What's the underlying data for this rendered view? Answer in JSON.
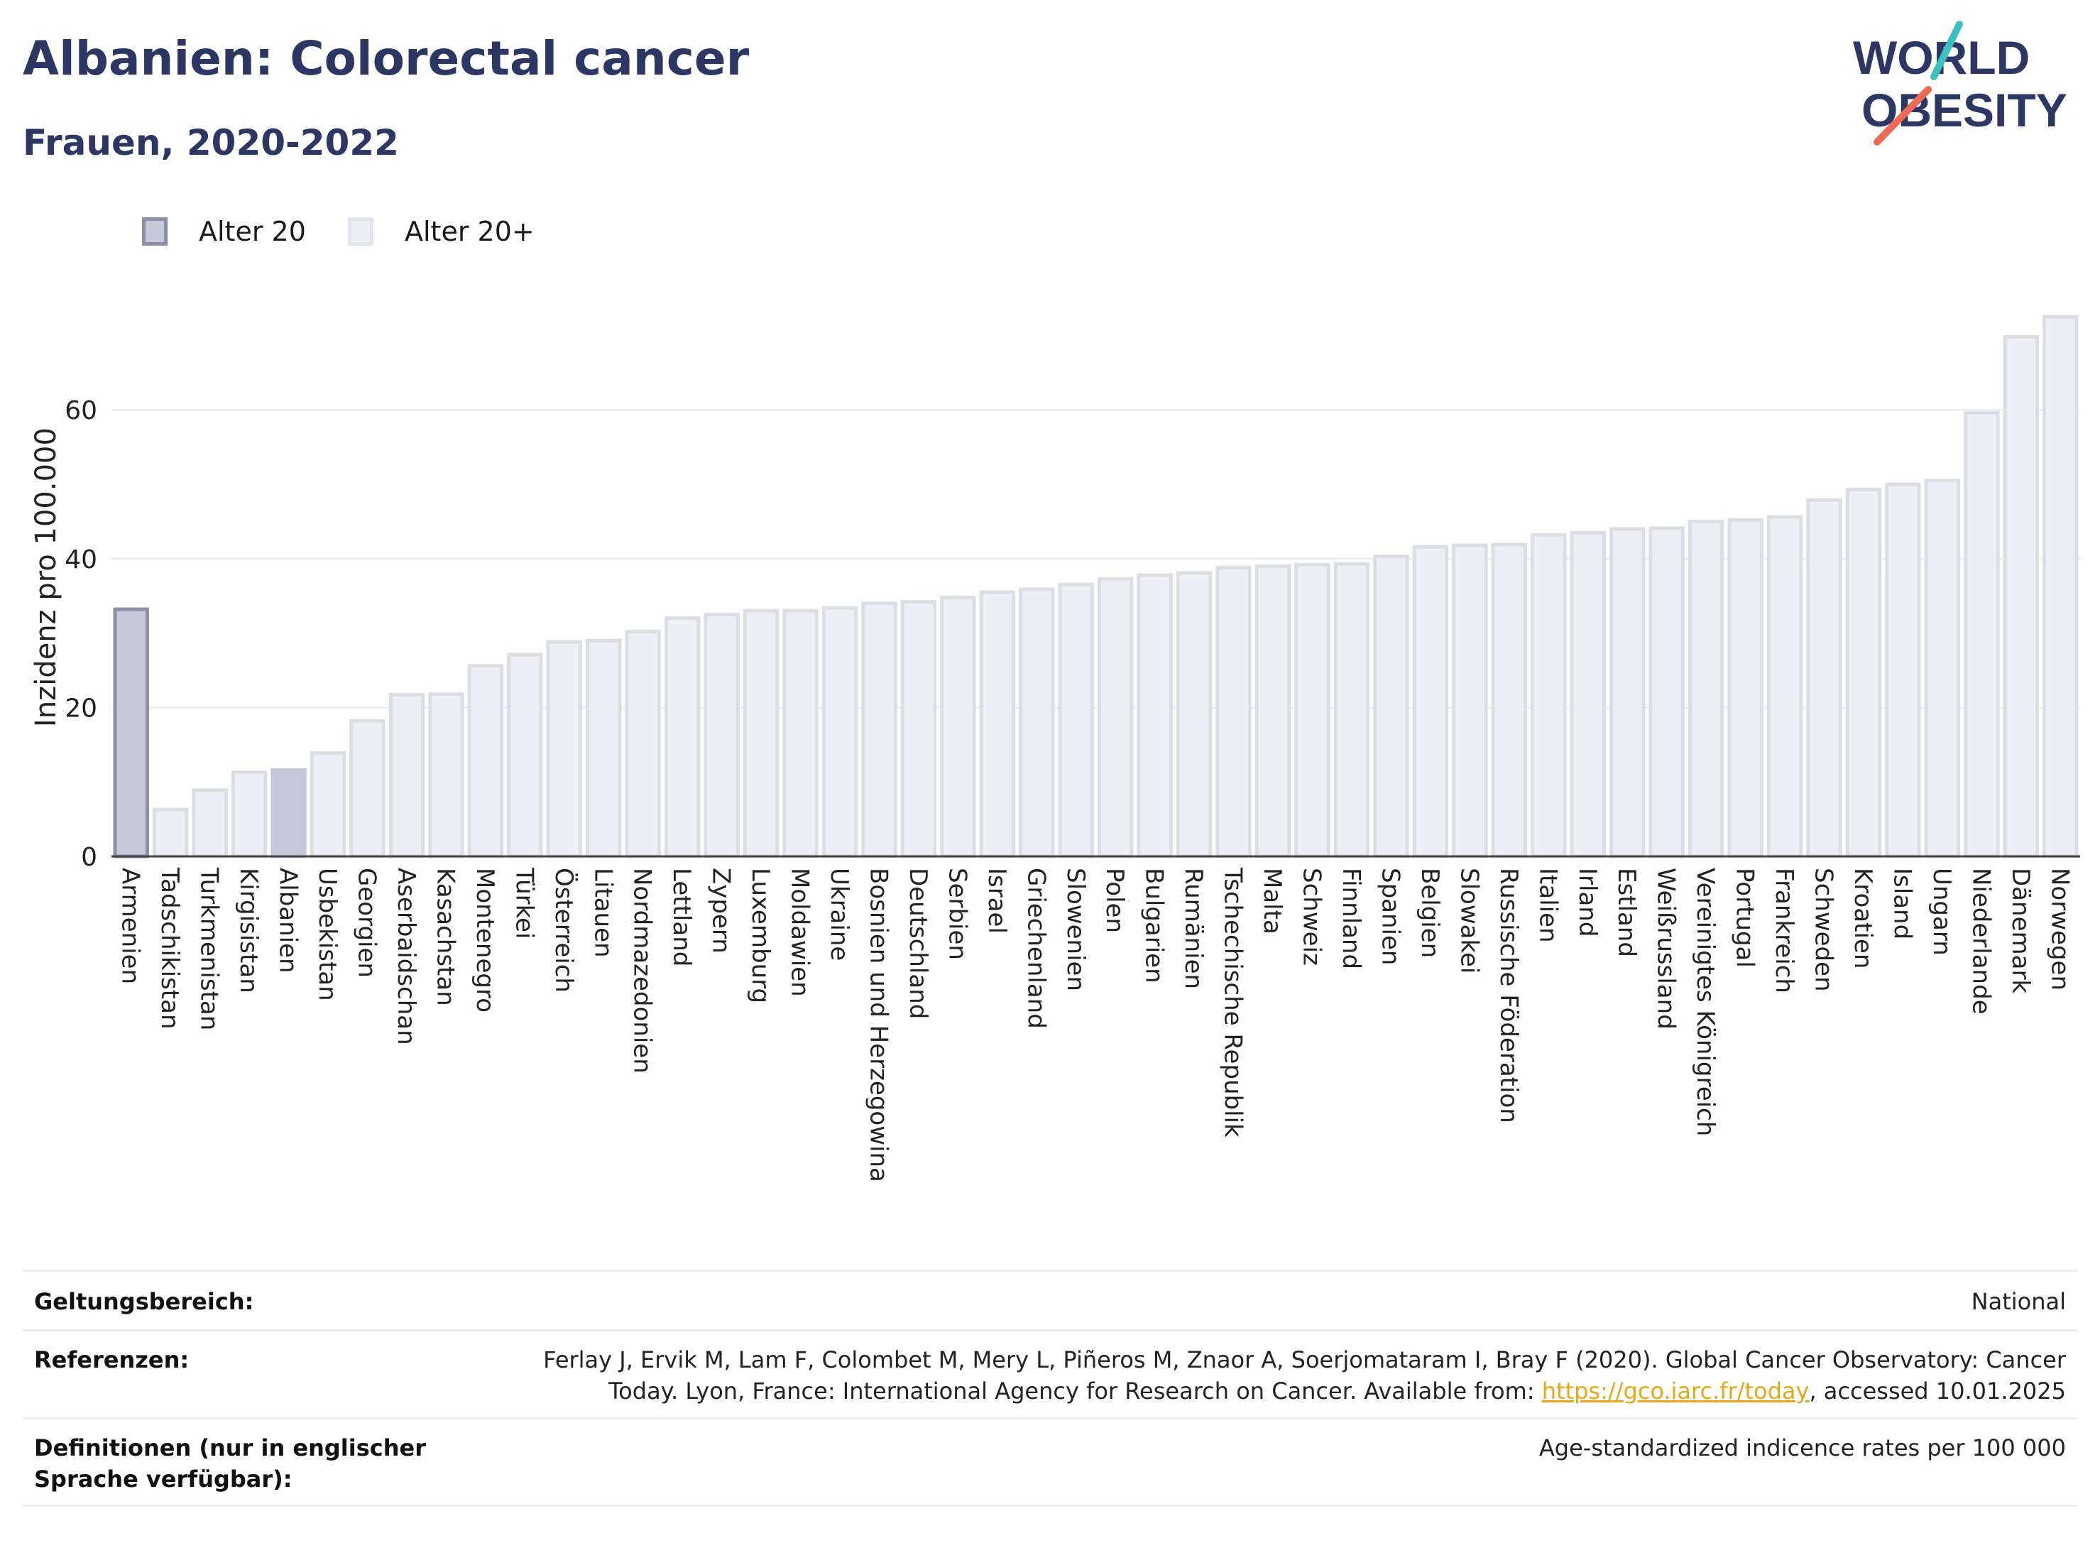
{
  "title": "Albanien: Colorectal cancer",
  "subtitle": "Frauen, 2020-2022",
  "logo": {
    "line1": "WORLD",
    "line2": "OBESITY"
  },
  "colors": {
    "title": "#2d3763",
    "highlight_fill": "#c5c8d6",
    "highlight_stroke": "#8a90a8",
    "bar_fill": "#eeeff4",
    "bar_stroke": "#dcdee6",
    "grid": "#e6e8ef",
    "link": "#e6a817",
    "logo_teal": "#3cc0c0",
    "logo_coral": "#ef6a55"
  },
  "legend": [
    {
      "label": "Alter 20",
      "swatch": "dark"
    },
    {
      "label": "Alter 20+",
      "swatch": "light"
    }
  ],
  "chart_data": {
    "type": "bar",
    "ylabel": "Inzidenz pro 100.000",
    "ylim": [
      0,
      75
    ],
    "yticks": [
      0,
      20,
      40,
      60
    ],
    "grid": true,
    "categories": [
      "Armenien",
      "Tadschikistan",
      "Turkmenistan",
      "Kirgisistan",
      "Albanien",
      "Usbekistan",
      "Georgien",
      "Aserbaidschan",
      "Kasachstan",
      "Montenegro",
      "Türkei",
      "Österreich",
      "Litauen",
      "Nordmazedonien",
      "Lettland",
      "Zypern",
      "Luxemburg",
      "Moldawien",
      "Ukraine",
      "Bosnien und Herzegowina",
      "Deutschland",
      "Serbien",
      "Israel",
      "Griechenland",
      "Slowenien",
      "Polen",
      "Bulgarien",
      "Rumänien",
      "Tschechische Republik",
      "Malta",
      "Schweiz",
      "Finnland",
      "Spanien",
      "Belgien",
      "Slowakei",
      "Russische Föderation",
      "Italien",
      "Irland",
      "Estland",
      "Weißrussland",
      "Vereinigtes Königreich",
      "Portugal",
      "Frankreich",
      "Schweden",
      "Kroatien",
      "Island",
      "Ungarn",
      "Niederlande",
      "Dänemark",
      "Norwegen"
    ],
    "values": [
      33.2,
      6.3,
      8.9,
      11.3,
      11.6,
      13.9,
      18.2,
      21.7,
      21.8,
      25.6,
      27.1,
      28.8,
      29.0,
      30.2,
      32.0,
      32.5,
      33.0,
      33.0,
      33.4,
      34.0,
      34.2,
      34.8,
      35.5,
      35.9,
      36.5,
      37.3,
      37.8,
      38.1,
      38.8,
      39.0,
      39.2,
      39.3,
      40.3,
      41.6,
      41.8,
      41.9,
      43.2,
      43.5,
      44.0,
      44.1,
      45.0,
      45.2,
      45.6,
      47.9,
      49.3,
      50.0,
      50.5,
      59.6,
      69.8,
      72.5
    ],
    "series_of_bar": [
      "Alter 20",
      "Alter 20+",
      "Alter 20+",
      "Alter 20+",
      "highlight",
      "Alter 20+",
      "Alter 20+",
      "Alter 20+",
      "Alter 20+",
      "Alter 20+",
      "Alter 20+",
      "Alter 20+",
      "Alter 20+",
      "Alter 20+",
      "Alter 20+",
      "Alter 20+",
      "Alter 20+",
      "Alter 20+",
      "Alter 20+",
      "Alter 20+",
      "Alter 20+",
      "Alter 20+",
      "Alter 20+",
      "Alter 20+",
      "Alter 20+",
      "Alter 20+",
      "Alter 20+",
      "Alter 20+",
      "Alter 20+",
      "Alter 20+",
      "Alter 20+",
      "Alter 20+",
      "Alter 20+",
      "Alter 20+",
      "Alter 20+",
      "Alter 20+",
      "Alter 20+",
      "Alter 20+",
      "Alter 20+",
      "Alter 20+",
      "Alter 20+",
      "Alter 20+",
      "Alter 20+",
      "Alter 20+",
      "Alter 20+",
      "Alter 20+",
      "Alter 20+",
      "Alter 20+",
      "Alter 20+",
      "Alter 20+"
    ]
  },
  "info": {
    "scope_label": "Geltungsbereich:",
    "scope_value": "National",
    "refs_label": "Referenzen:",
    "refs_line1": "Ferlay J, Ervik M, Lam F, Colombet M, Mery L, Piñeros M, Znaor A, Soerjomataram I, Bray F (2020). Global Cancer Observatory: Cancer",
    "refs_line2_pre": "Today. Lyon, France: International Agency for Research on Cancer. Available from: ",
    "refs_link": "https://gco.iarc.fr/today",
    "refs_line2_post": ", accessed 10.01.2025",
    "defs_label": "Definitionen (nur in englischer Sprache verfügbar):",
    "defs_value": "Age-standardized indicence rates per 100 000"
  }
}
